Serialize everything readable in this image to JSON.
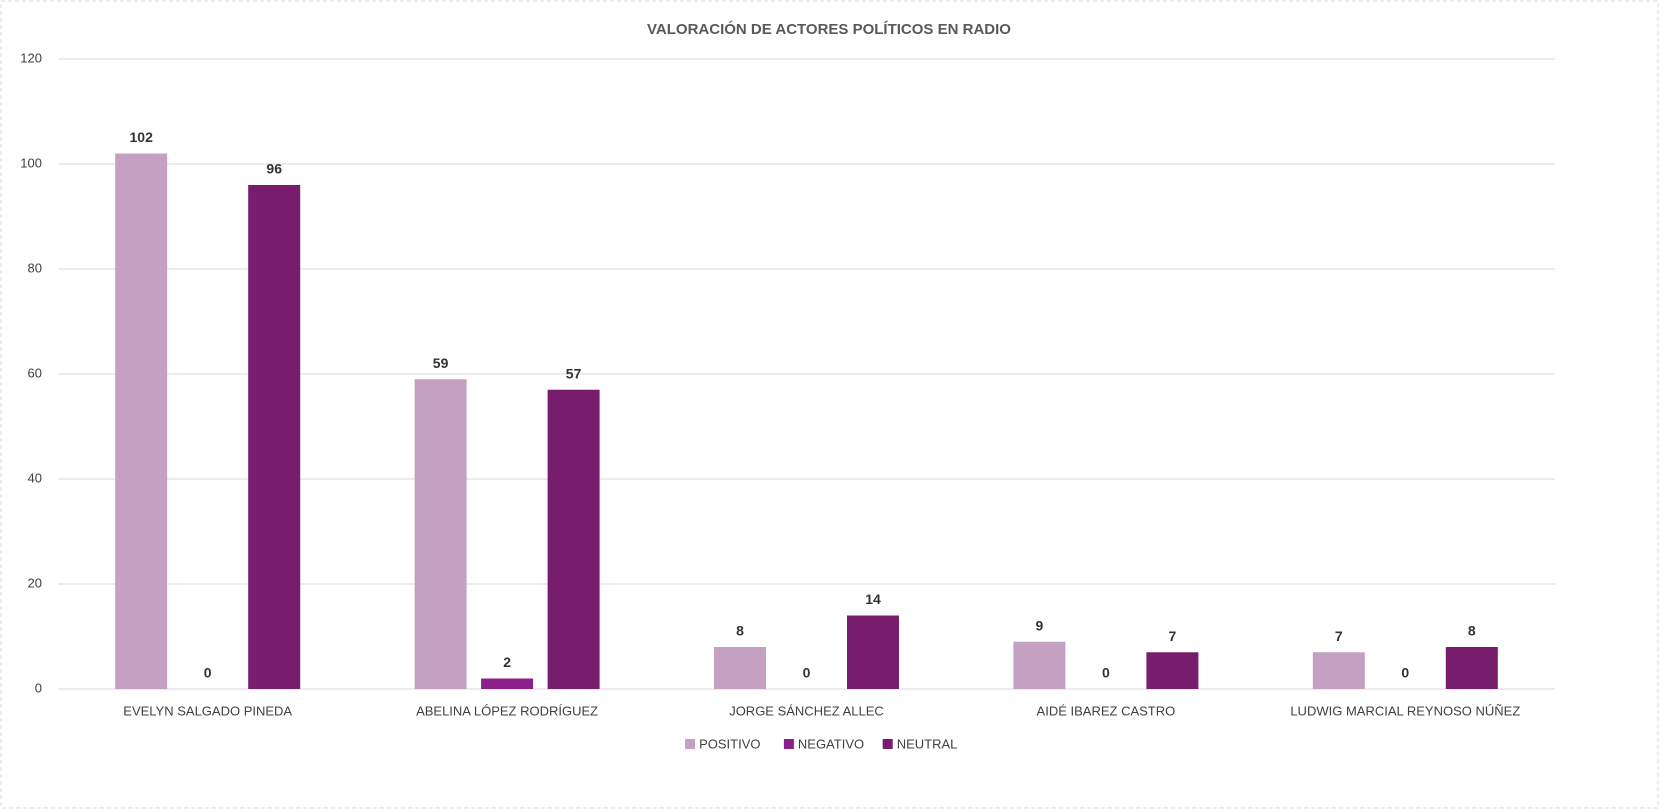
{
  "chart_data": {
    "type": "bar",
    "title": "VALORACIÓN DE ACTORES POLÍTICOS EN RADIO",
    "categories": [
      "EVELYN SALGADO PINEDA",
      "ABELINA LÓPEZ RODRÍGUEZ",
      "JORGE SÁNCHEZ ALLEC",
      "AIDÉ IBAREZ CASTRO",
      "LUDWIG MARCIAL REYNOSO NÚÑEZ"
    ],
    "series": [
      {
        "name": "POSITIVO",
        "color": "#c4a1c2",
        "values": [
          102,
          59,
          8,
          9,
          7
        ]
      },
      {
        "name": "NEGATIVO",
        "color": "#8c1f8c",
        "values": [
          0,
          2,
          0,
          0,
          0
        ]
      },
      {
        "name": "NEUTRAL",
        "color": "#781c6e",
        "values": [
          96,
          57,
          14,
          7,
          8
        ]
      }
    ],
    "ylim": [
      0,
      120
    ],
    "yticks": [
      0,
      20,
      40,
      60,
      80,
      100,
      120
    ],
    "grid": true,
    "legend": "bottom"
  }
}
